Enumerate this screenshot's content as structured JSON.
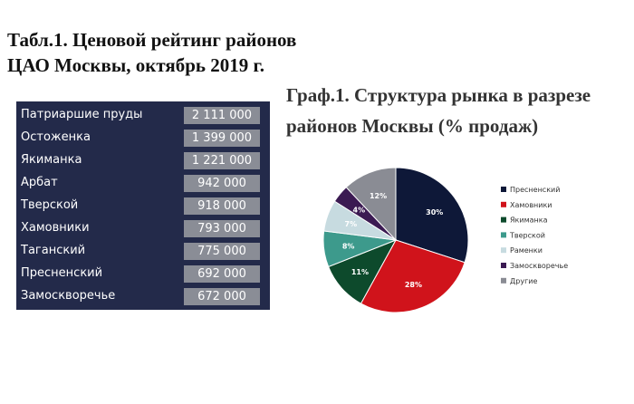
{
  "table_title": [
    "Табл.1. Ценовой рейтинг районов",
    "ЦАО Москвы, октябрь 2019 г."
  ],
  "table_rows": [
    {
      "name": "Патриаршие пруды",
      "value": "2 111 000"
    },
    {
      "name": "Остоженка",
      "value": "1 399 000"
    },
    {
      "name": "Якиманка",
      "value": "1 221 000"
    },
    {
      "name": "Арбат",
      "value": "942 000"
    },
    {
      "name": "Тверской",
      "value": "918 000"
    },
    {
      "name": "Хамовники",
      "value": "793 000"
    },
    {
      "name": "Таганский",
      "value": "775 000"
    },
    {
      "name": "Пресненский",
      "value": "692 000"
    },
    {
      "name": "Замоскворечье",
      "value": "672 000"
    }
  ],
  "chart_title": [
    "Граф.1. Структура рынка в разрезе",
    "районов Москвы (% продаж)"
  ],
  "colors": {
    "table_bg": "#232a4a",
    "value_bg": "#8a8d96"
  },
  "chart_data": {
    "type": "pie",
    "categories": [
      "Пресненский",
      "Хамовники",
      "Якиманка",
      "Тверской",
      "Раменки",
      "Замоскворечье",
      "Другие"
    ],
    "values": [
      30,
      28,
      11,
      8,
      7,
      4,
      12
    ],
    "labels": [
      "30%",
      "28%",
      "11%",
      "8%",
      "7%",
      "4%",
      "12%"
    ],
    "colors": [
      "#0e1838",
      "#d0131b",
      "#0d4a2c",
      "#3d9a8c",
      "#c7dbe0",
      "#3b1a52",
      "#8a8c94"
    ],
    "legend_position": "right"
  }
}
